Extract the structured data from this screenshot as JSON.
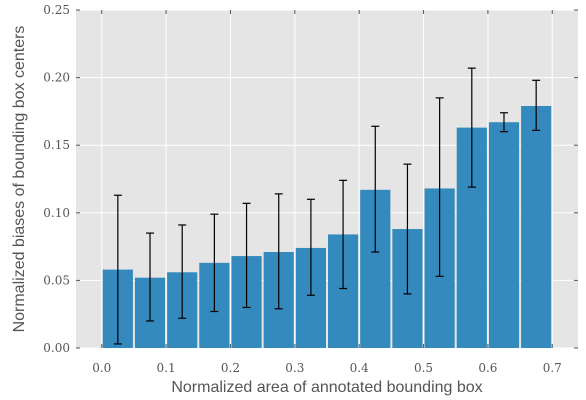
{
  "chart_data": {
    "type": "bar",
    "title": "",
    "xlabel": "Normalized area of annotated bounding box",
    "ylabel": "Normalized biases of bounding box centers",
    "x_ticks": [
      "0.0",
      "0.1",
      "0.2",
      "0.3",
      "0.4",
      "0.5",
      "0.6",
      "0.7"
    ],
    "y_ticks": [
      "0.00",
      "0.05",
      "0.10",
      "0.15",
      "0.20",
      "0.25"
    ],
    "xlim": [
      -0.04,
      0.74
    ],
    "ylim": [
      0,
      0.25
    ],
    "bin_width": 0.05,
    "x": [
      0.025,
      0.075,
      0.125,
      0.175,
      0.225,
      0.275,
      0.325,
      0.375,
      0.425,
      0.475,
      0.525,
      0.575,
      0.625,
      0.675
    ],
    "values": [
      0.058,
      0.052,
      0.056,
      0.063,
      0.068,
      0.071,
      0.074,
      0.084,
      0.117,
      0.088,
      0.118,
      0.163,
      0.167,
      0.179
    ],
    "error_low": [
      0.003,
      0.02,
      0.022,
      0.027,
      0.03,
      0.029,
      0.039,
      0.044,
      0.071,
      0.04,
      0.053,
      0.119,
      0.16,
      0.161
    ],
    "error_high": [
      0.113,
      0.085,
      0.091,
      0.099,
      0.107,
      0.114,
      0.11,
      0.124,
      0.164,
      0.136,
      0.185,
      0.207,
      0.174,
      0.198
    ],
    "grid": true,
    "colors": {
      "bar": "#348abd",
      "background": "#e5e5e5",
      "grid": "#ffffff",
      "errorbar": "#000000"
    }
  }
}
